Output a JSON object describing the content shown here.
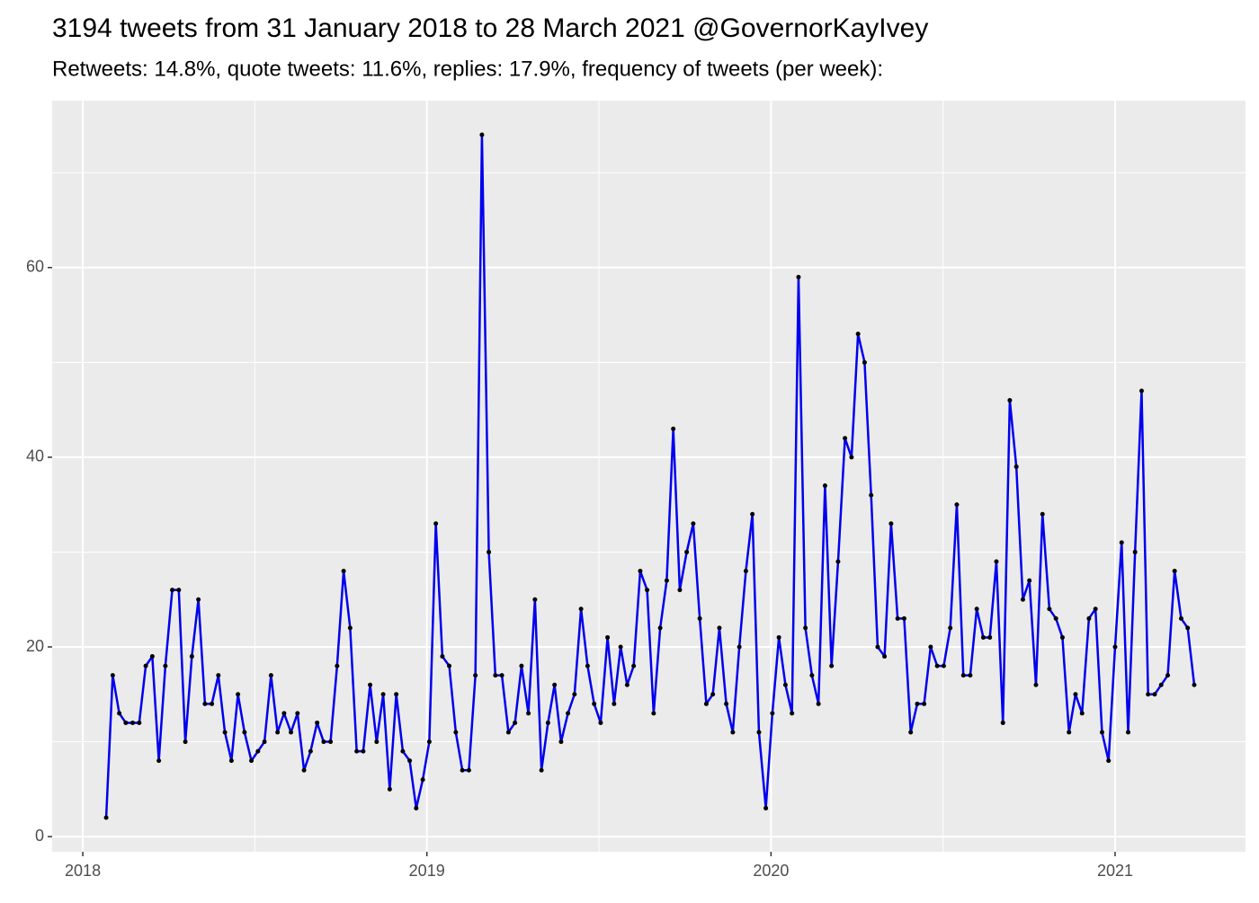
{
  "chart_data": {
    "type": "line",
    "title": "3194 tweets from 31 January 2018 to 28 March 2021 @GovernorKayIvey",
    "subtitle": "Retweets: 14.8%, quote tweets: 11.6%, replies: 17.9%, frequency of tweets (per week):",
    "x": [
      2018.068,
      2018.087,
      2018.106,
      2018.125,
      2018.145,
      2018.164,
      2018.183,
      2018.202,
      2018.221,
      2018.24,
      2018.26,
      2018.279,
      2018.298,
      2018.317,
      2018.336,
      2018.355,
      2018.375,
      2018.394,
      2018.413,
      2018.432,
      2018.451,
      2018.47,
      2018.49,
      2018.509,
      2018.528,
      2018.547,
      2018.566,
      2018.585,
      2018.605,
      2018.624,
      2018.643,
      2018.662,
      2018.681,
      2018.7,
      2018.72,
      2018.739,
      2018.758,
      2018.777,
      2018.796,
      2018.815,
      2018.835,
      2018.854,
      2018.873,
      2018.892,
      2018.911,
      2018.93,
      2018.95,
      2018.969,
      2018.988,
      2019.007,
      2019.026,
      2019.045,
      2019.065,
      2019.084,
      2019.103,
      2019.122,
      2019.141,
      2019.16,
      2019.18,
      2019.199,
      2019.218,
      2019.237,
      2019.256,
      2019.275,
      2019.295,
      2019.314,
      2019.333,
      2019.352,
      2019.371,
      2019.39,
      2019.41,
      2019.429,
      2019.448,
      2019.467,
      2019.486,
      2019.505,
      2019.525,
      2019.544,
      2019.563,
      2019.582,
      2019.601,
      2019.62,
      2019.64,
      2019.659,
      2019.678,
      2019.697,
      2019.716,
      2019.735,
      2019.755,
      2019.774,
      2019.793,
      2019.812,
      2019.831,
      2019.85,
      2019.87,
      2019.889,
      2019.908,
      2019.927,
      2019.946,
      2019.965,
      2019.985,
      2020.004,
      2020.023,
      2020.042,
      2020.061,
      2020.08,
      2020.1,
      2020.119,
      2020.138,
      2020.157,
      2020.176,
      2020.195,
      2020.215,
      2020.234,
      2020.253,
      2020.272,
      2020.291,
      2020.31,
      2020.33,
      2020.349,
      2020.368,
      2020.387,
      2020.406,
      2020.425,
      2020.445,
      2020.464,
      2020.483,
      2020.502,
      2020.521,
      2020.54,
      2020.559,
      2020.579,
      2020.598,
      2020.617,
      2020.636,
      2020.655,
      2020.674,
      2020.694,
      2020.713,
      2020.732,
      2020.751,
      2020.77,
      2020.789,
      2020.809,
      2020.828,
      2020.847,
      2020.866,
      2020.885,
      2020.904,
      2020.924,
      2020.943,
      2020.962,
      2020.981,
      2021.0,
      2021.019,
      2021.038,
      2021.058,
      2021.077,
      2021.096,
      2021.115,
      2021.134,
      2021.153,
      2021.173,
      2021.192,
      2021.211,
      2021.23
    ],
    "series": [
      {
        "name": "tweets",
        "color": "#0000ee",
        "values": [
          2,
          17,
          13,
          12,
          12,
          12,
          18,
          19,
          8,
          18,
          26,
          26,
          10,
          19,
          25,
          14,
          14,
          17,
          11,
          8,
          15,
          11,
          8,
          9,
          10,
          17,
          11,
          13,
          11,
          13,
          7,
          9,
          12,
          10,
          10,
          18,
          28,
          22,
          9,
          9,
          16,
          10,
          15,
          5,
          15,
          9,
          8,
          3,
          6,
          10,
          33,
          19,
          18,
          11,
          7,
          7,
          17,
          74,
          30,
          17,
          17,
          11,
          12,
          18,
          13,
          25,
          7,
          12,
          16,
          10,
          13,
          15,
          24,
          18,
          14,
          12,
          21,
          14,
          20,
          16,
          18,
          28,
          26,
          13,
          22,
          27,
          43,
          26,
          30,
          33,
          23,
          14,
          15,
          22,
          14,
          11,
          20,
          28,
          34,
          11,
          3,
          13,
          21,
          16,
          13,
          59,
          22,
          17,
          14,
          37,
          18,
          29,
          42,
          40,
          53,
          50,
          36,
          20,
          19,
          33,
          23,
          23,
          11,
          14,
          14,
          20,
          18,
          18,
          22,
          35,
          17,
          17,
          24,
          21,
          21,
          29,
          12,
          46,
          39,
          25,
          27,
          16,
          34,
          24,
          23,
          21,
          11,
          15,
          13,
          23,
          24,
          11,
          8,
          20,
          31,
          11,
          30,
          47,
          15,
          15,
          16,
          17,
          28,
          23,
          22,
          16
        ]
      }
    ],
    "xlim": [
      2017.911,
      2021.379
    ],
    "xticks": [
      2018,
      2019,
      2020,
      2021
    ],
    "minor_xticks": [
      2018.5,
      2019.5,
      2020.5
    ],
    "ylim": [
      -1.6,
      77.6
    ],
    "yticks": [
      0,
      20,
      40,
      60
    ],
    "minor_yticks": [
      10,
      30,
      50,
      70
    ],
    "grid": true,
    "point_color": "#000000"
  }
}
